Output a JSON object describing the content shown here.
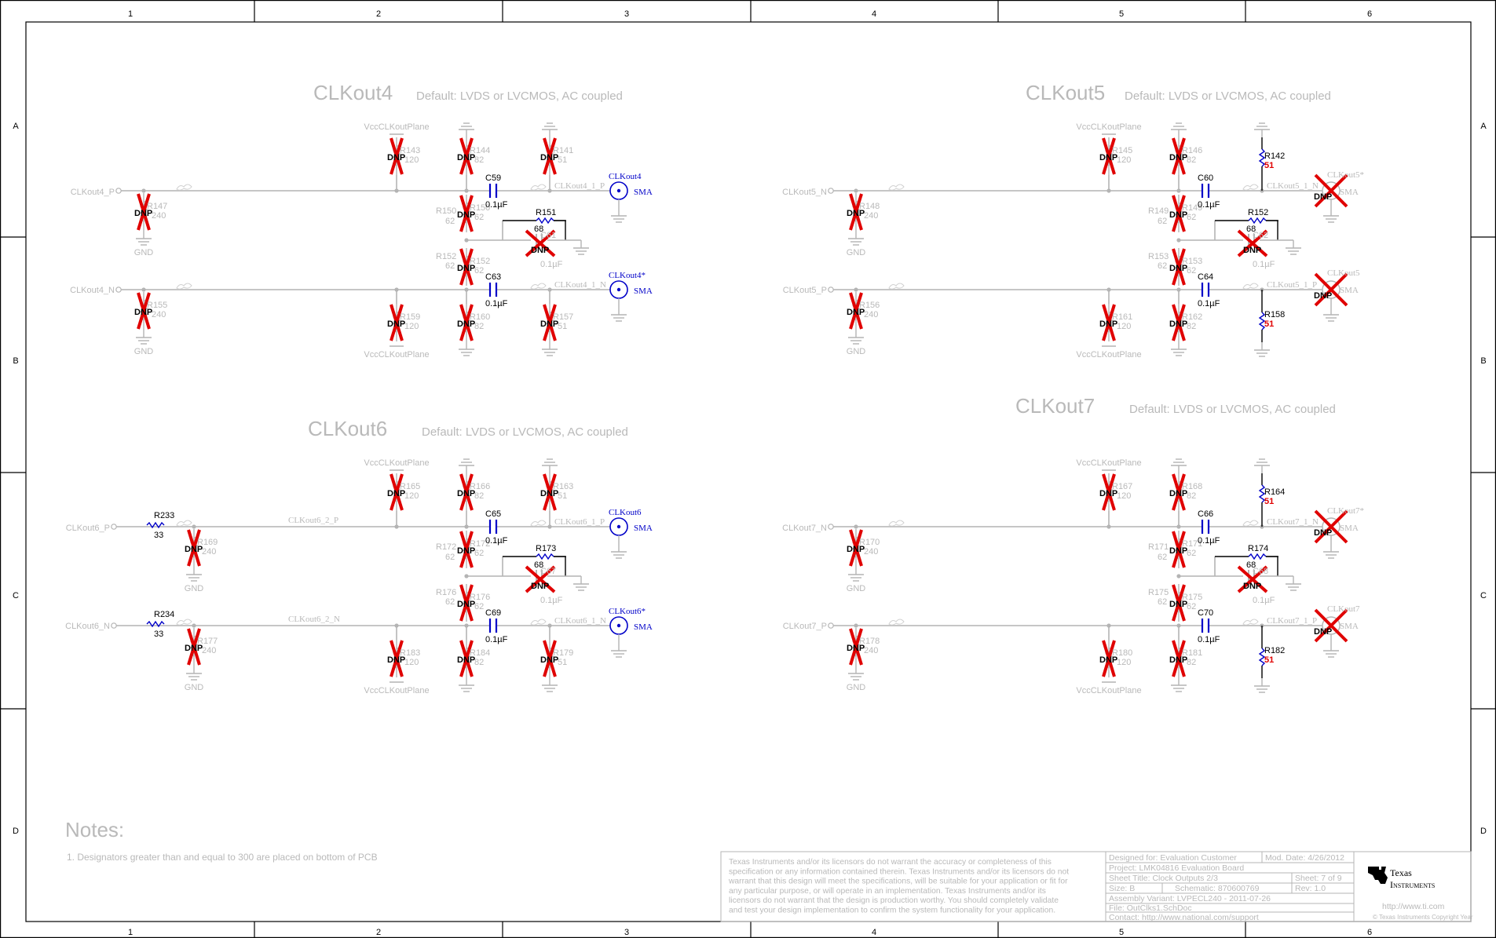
{
  "zones": {
    "columns": [
      "1",
      "2",
      "3",
      "4",
      "5",
      "6"
    ],
    "rows": [
      "A",
      "B",
      "C",
      "D"
    ]
  },
  "blocks": [
    {
      "title": "CLKout4",
      "note": "Default: LVDS or LVCMOS, AC coupled",
      "vcc": "VccCLKoutPlane",
      "dnp": "DNP",
      "gnd": "GND",
      "port_top": "CLKout4_P",
      "port_bot": "CLKout4_N",
      "shunt_top": "R147",
      "shunt_top_val": "240",
      "shunt_bot": "R155",
      "shunt_bot_val": "240",
      "r_vcc_top": "R143",
      "r_vcc_top_val": "120",
      "r_vcc_bot": "R159",
      "r_vcc_bot_val": "120",
      "r_gnd_top": "R144",
      "r_gnd_top_val": "82",
      "r_gnd_bot": "R160",
      "r_gnd_bot_val": "82",
      "r_mid_top": "R150",
      "r_mid_top_val": "62",
      "r_mid_bot": "R152",
      "r_mid_bot_val": "62",
      "cap_top": "C59",
      "cap_top_val": "0.1µF",
      "cap_bot": "C63",
      "cap_bot_val": "0.1µF",
      "r_diff": "R151",
      "r_diff_val": "68",
      "cap_diff": "C61",
      "cap_diff_val": "0.1µF",
      "r_out_top": "R141",
      "r_out_top_val": "51",
      "r_out_bot": "R157",
      "r_out_bot_val": "51",
      "net_top": "CLKout4_1_P",
      "net_bot": "CLKout4_1_N",
      "sma_top": "CLKout4",
      "sma_bot": "CLKout4*",
      "sma": "SMA"
    },
    {
      "title": "CLKout5",
      "note": "Default: LVDS or LVCMOS, AC coupled",
      "vcc": "VccCLKoutPlane",
      "dnp": "DNP",
      "gnd": "GND",
      "port_top": "CLKout5_N",
      "port_bot": "CLKout5_P",
      "shunt_top": "R148",
      "shunt_top_val": "240",
      "shunt_bot": "R156",
      "shunt_bot_val": "240",
      "r_vcc_top": "R145",
      "r_vcc_top_val": "120",
      "r_vcc_bot": "R161",
      "r_vcc_bot_val": "120",
      "r_gnd_top": "R146",
      "r_gnd_top_val": "82",
      "r_gnd_bot": "R162",
      "r_gnd_bot_val": "82",
      "r_mid_top": "R149",
      "r_mid_top_val": "62",
      "r_mid_bot": "R153",
      "r_mid_bot_val": "62",
      "cap_top": "C60",
      "cap_top_val": "0.1µF",
      "cap_bot": "C64",
      "cap_bot_val": "0.1µF",
      "r_diff": "R152",
      "r_diff_val": "68",
      "cap_diff": "C62",
      "cap_diff_val": "0.1µF",
      "r_out_top": "R142",
      "r_out_top_val": "51",
      "r_out_bot": "R158",
      "r_out_bot_val": "51",
      "net_top": "CLKout5_1_N",
      "net_bot": "CLKout5_1_P",
      "sma_top": "CLKout5*",
      "sma_bot": "CLKout5",
      "sma": "SMA"
    },
    {
      "title": "CLKout6",
      "note": "Default: LVDS or LVCMOS, AC coupled",
      "vcc": "VccCLKoutPlane",
      "dnp": "DNP",
      "gnd": "GND",
      "port_top": "CLKout6_P",
      "port_bot": "CLKout6_N",
      "series_top": "R233",
      "series_top_val": "33",
      "series_bot": "R234",
      "series_bot_val": "33",
      "shunt_top": "R169",
      "shunt_top_val": "240",
      "shunt_bot": "R177",
      "shunt_bot_val": "240",
      "r_vcc_top": "R165",
      "r_vcc_top_val": "120",
      "r_vcc_bot": "R183",
      "r_vcc_bot_val": "120",
      "r_gnd_top": "R166",
      "r_gnd_top_val": "82",
      "r_gnd_bot": "R184",
      "r_gnd_bot_val": "82",
      "r_mid_top": "R172",
      "r_mid_top_val": "62",
      "r_mid_bot": "R176",
      "r_mid_bot_val": "62",
      "cap_top": "C65",
      "cap_top_val": "0.1µF",
      "cap_bot": "C69",
      "cap_bot_val": "0.1µF",
      "r_diff": "R173",
      "r_diff_val": "68",
      "cap_diff": "C67",
      "cap_diff_val": "0.1µF",
      "r_out_top": "R163",
      "r_out_top_val": "51",
      "r_out_bot": "R179",
      "r_out_bot_val": "51",
      "net_top": "CLKout6_1_P",
      "net_bot": "CLKout6_1_N",
      "net2_top": "CLKout6_2_P",
      "net2_bot": "CLKout6_2_N",
      "sma_top": "CLKout6",
      "sma_bot": "CLKout6*",
      "sma": "SMA"
    },
    {
      "title": "CLKout7",
      "note": "Default: LVDS or LVCMOS, AC coupled",
      "vcc": "VccCLKoutPlane",
      "dnp": "DNP",
      "gnd": "GND",
      "port_top": "CLKout7_N",
      "port_bot": "CLKout7_P",
      "shunt_top": "R170",
      "shunt_top_val": "240",
      "shunt_bot": "R178",
      "shunt_bot_val": "240",
      "r_vcc_top": "R167",
      "r_vcc_top_val": "120",
      "r_vcc_bot": "R180",
      "r_vcc_bot_val": "120",
      "r_gnd_top": "R168",
      "r_gnd_top_val": "82",
      "r_gnd_bot": "R181",
      "r_gnd_bot_val": "82",
      "r_mid_top": "R171",
      "r_mid_top_val": "62",
      "r_mid_bot": "R175",
      "r_mid_bot_val": "62",
      "cap_top": "C66",
      "cap_top_val": "0.1µF",
      "cap_bot": "C70",
      "cap_bot_val": "0.1µF",
      "r_diff": "R174",
      "r_diff_val": "68",
      "cap_diff": "C68",
      "cap_diff_val": "0.1µF",
      "r_out_top": "R164",
      "r_out_top_val": "51",
      "r_out_bot": "R182",
      "r_out_bot_val": "51",
      "net_top": "CLKout7_1_N",
      "net_bot": "CLKout7_1_P",
      "sma_top": "CLKout7*",
      "sma_bot": "CLKout7",
      "sma": "SMA"
    }
  ],
  "notes": {
    "title": "Notes:",
    "line1": "1. Designators greater than and equal to 300 are placed on bottom of PCB"
  },
  "title_block": {
    "disclaimer": [
      "Texas Instruments and/or its licensors do not warrant the accuracy or completeness of this",
      "specification or any information contained therein. Texas Instruments and/or its licensors do not",
      "warrant that this design will meet the specifications, will be suitable for your application or fit for",
      "any particular purpose, or will operate in an implementation. Texas Instruments and/or its",
      "licensors do not warrant that the design is production worthy. You should completely validate",
      "and test your design implementation to confirm the system functionality for your application."
    ],
    "designed_for": "Designed for: Evaluation Customer",
    "mod_date": "Mod. Date: 4/26/2012",
    "project": "Project:  LMK04816 Evaluation Board",
    "sheet_title": "Sheet Title: Clock Outputs 2/3",
    "sheet": "Sheet: 7  of  9",
    "size": "Size: B",
    "schematic": "Schematic: 870600769",
    "rev": "Rev: 1.0",
    "assembly": "Assembly Variant: LVPECL240 - 2011-07-26",
    "file": "File: OutClks1.SchDoc",
    "contact": "Contact: http://www.national.com/support",
    "logo_line1": "Texas",
    "logo_line2": "Instruments",
    "url": "http://www.ti.com",
    "copyright": "© Texas Instruments  Copyright Year"
  }
}
